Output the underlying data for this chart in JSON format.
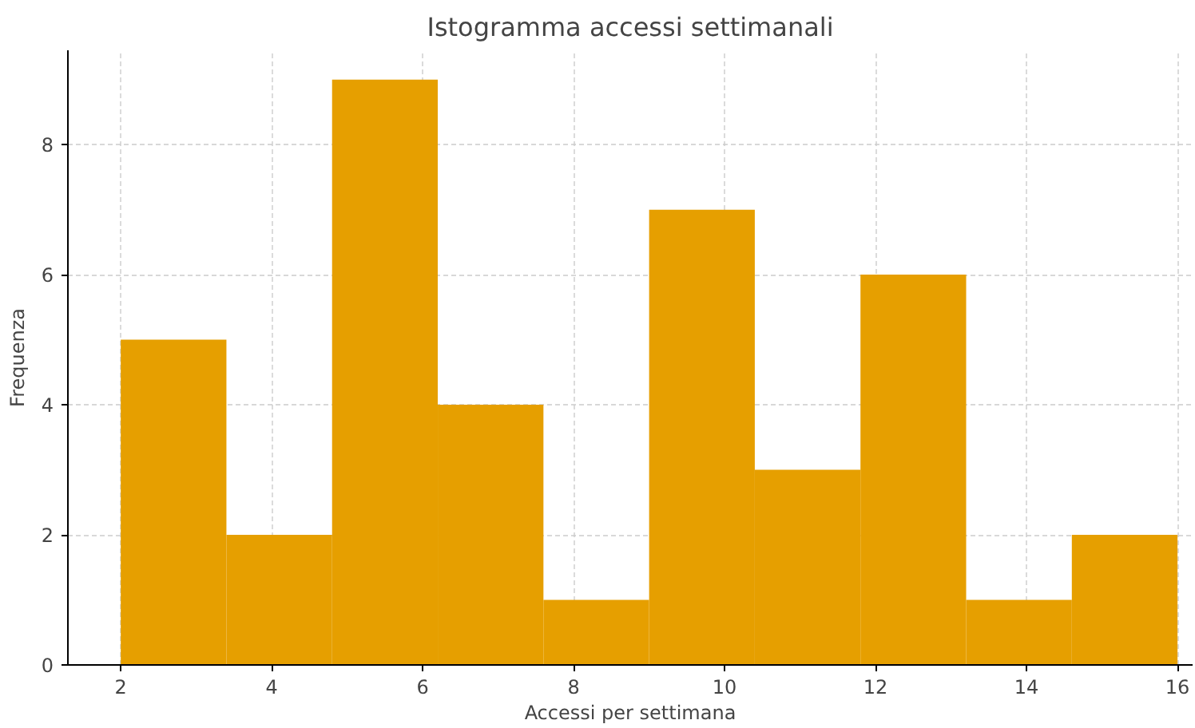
{
  "chart_data": {
    "type": "histogram",
    "title": "Istogramma accessi settimanali",
    "xlabel": "Accessi per settimana",
    "ylabel": "Frequenza",
    "bins": [
      2,
      3.4,
      4.8,
      6.2,
      7.6,
      9,
      10.4,
      11.8,
      13.2,
      14.6,
      16
    ],
    "values": [
      5,
      2,
      9,
      4,
      1,
      7,
      3,
      6,
      1,
      2
    ],
    "color": "#e69f00",
    "xlim": [
      1.3,
      16.2
    ],
    "ylim": [
      0,
      9.45
    ],
    "xticks": [
      2,
      4,
      6,
      8,
      10,
      12,
      14,
      16
    ],
    "yticks": [
      0,
      2,
      4,
      6,
      8
    ],
    "grid": true
  }
}
